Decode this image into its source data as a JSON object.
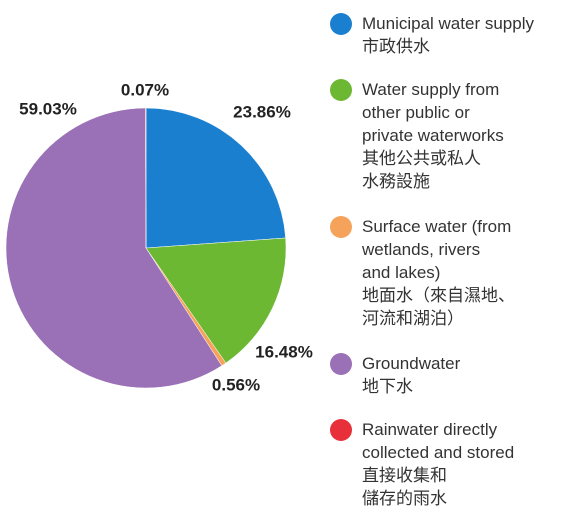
{
  "chart_data": {
    "type": "pie",
    "categories": [
      "Municipal water supply\n市政供水",
      "Water supply from\nother public or\nprivate waterworks\n其他公共或私人\n水務設施",
      "Surface water (from\nwetlands, rivers\nand lakes)\n地面水（來自濕地、\n河流和湖泊）",
      "Groundwater\n地下水",
      "Rainwater directly\ncollected and stored\n直接收集和\n儲存的雨水"
    ],
    "values": [
      23.86,
      16.48,
      0.56,
      59.03,
      0.07
    ],
    "value_labels": [
      "23.86%",
      "16.48%",
      "0.56%",
      "59.03%",
      "0.07%"
    ],
    "colors": [
      "#1b7fd0",
      "#6cb833",
      "#f5a35a",
      "#9a70b6",
      "#e8303a"
    ]
  }
}
